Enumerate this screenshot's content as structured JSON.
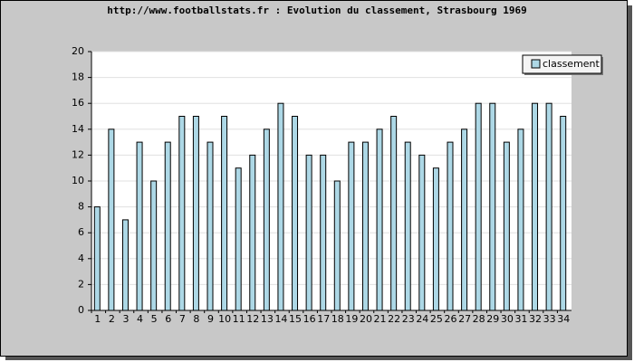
{
  "chart_data": {
    "type": "bar",
    "title": "http://www.footballstats.fr : Evolution du classement, Strasbourg 1969",
    "categories": [
      "1",
      "2",
      "3",
      "4",
      "5",
      "6",
      "7",
      "8",
      "9",
      "10",
      "11",
      "12",
      "13",
      "14",
      "15",
      "16",
      "17",
      "18",
      "19",
      "20",
      "21",
      "22",
      "23",
      "24",
      "25",
      "26",
      "27",
      "28",
      "29",
      "30",
      "31",
      "32",
      "33",
      "34"
    ],
    "series": [
      {
        "name": "classement",
        "color": "#add8e6",
        "values": [
          8,
          14,
          7,
          13,
          10,
          13,
          15,
          15,
          13,
          15,
          11,
          12,
          14,
          16,
          15,
          12,
          12,
          10,
          13,
          13,
          14,
          15,
          13,
          12,
          11,
          13,
          14,
          16,
          16,
          13,
          14,
          16,
          16,
          15
        ]
      }
    ],
    "ylim": [
      0,
      20
    ],
    "yticks": [
      0,
      2,
      4,
      6,
      8,
      10,
      12,
      14,
      16,
      18,
      20
    ],
    "grid": true,
    "legend": "top-right"
  }
}
